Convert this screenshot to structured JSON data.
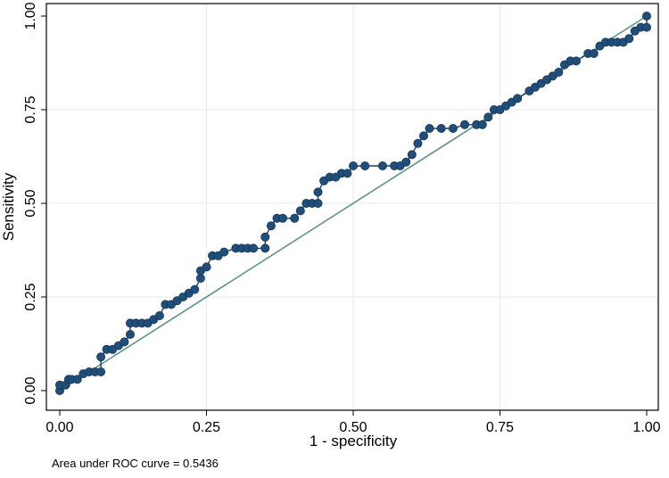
{
  "chart_data": {
    "type": "line",
    "title": "",
    "xlabel": "1 - specificity",
    "ylabel": "Sensitivity",
    "xlim": [
      0,
      1
    ],
    "ylim": [
      0,
      1
    ],
    "x_ticks": [
      "0.00",
      "0.25",
      "0.50",
      "0.75",
      "1.00"
    ],
    "y_ticks": [
      "0.00",
      "0.25",
      "0.50",
      "0.75",
      "1.00"
    ],
    "grid": true,
    "legend": "none",
    "note": "Area under ROC curve = 0.5436",
    "colors": {
      "roc_line": "#1a3f66",
      "roc_marker": "#1f4e79",
      "reference_line": "#5f9486",
      "grid": "#e4ebf0",
      "frame": "#000000"
    },
    "series": [
      {
        "type": "scatter-line",
        "x": [
          0.0,
          0.0,
          0.01,
          0.015,
          0.02,
          0.03,
          0.04,
          0.05,
          0.06,
          0.07,
          0.07,
          0.08,
          0.09,
          0.1,
          0.11,
          0.12,
          0.12,
          0.13,
          0.14,
          0.15,
          0.16,
          0.17,
          0.18,
          0.19,
          0.2,
          0.21,
          0.22,
          0.23,
          0.24,
          0.24,
          0.25,
          0.26,
          0.27,
          0.28,
          0.3,
          0.31,
          0.32,
          0.33,
          0.35,
          0.35,
          0.36,
          0.37,
          0.38,
          0.4,
          0.41,
          0.42,
          0.43,
          0.44,
          0.44,
          0.45,
          0.46,
          0.47,
          0.48,
          0.49,
          0.5,
          0.52,
          0.55,
          0.57,
          0.58,
          0.59,
          0.6,
          0.61,
          0.62,
          0.63,
          0.65,
          0.67,
          0.69,
          0.71,
          0.72,
          0.73,
          0.74,
          0.75,
          0.76,
          0.77,
          0.78,
          0.8,
          0.81,
          0.82,
          0.83,
          0.84,
          0.85,
          0.86,
          0.87,
          0.88,
          0.9,
          0.91,
          0.92,
          0.93,
          0.94,
          0.95,
          0.96,
          0.97,
          0.98,
          0.99,
          1.0,
          1.0
        ],
        "y": [
          0.0,
          0.015,
          0.015,
          0.03,
          0.03,
          0.03,
          0.045,
          0.05,
          0.05,
          0.05,
          0.09,
          0.11,
          0.11,
          0.12,
          0.13,
          0.15,
          0.18,
          0.18,
          0.18,
          0.18,
          0.19,
          0.2,
          0.23,
          0.23,
          0.24,
          0.25,
          0.26,
          0.27,
          0.3,
          0.32,
          0.33,
          0.36,
          0.36,
          0.37,
          0.38,
          0.38,
          0.38,
          0.38,
          0.38,
          0.41,
          0.44,
          0.46,
          0.46,
          0.46,
          0.48,
          0.5,
          0.5,
          0.5,
          0.53,
          0.56,
          0.57,
          0.57,
          0.58,
          0.58,
          0.6,
          0.6,
          0.6,
          0.6,
          0.6,
          0.61,
          0.63,
          0.66,
          0.68,
          0.7,
          0.7,
          0.7,
          0.71,
          0.71,
          0.71,
          0.73,
          0.75,
          0.75,
          0.76,
          0.77,
          0.78,
          0.8,
          0.81,
          0.82,
          0.83,
          0.84,
          0.85,
          0.87,
          0.88,
          0.88,
          0.9,
          0.9,
          0.92,
          0.93,
          0.93,
          0.93,
          0.93,
          0.94,
          0.96,
          0.97,
          0.97,
          1.0
        ]
      },
      {
        "type": "reference-line",
        "x": [
          0,
          1
        ],
        "y": [
          0,
          1
        ]
      }
    ]
  }
}
